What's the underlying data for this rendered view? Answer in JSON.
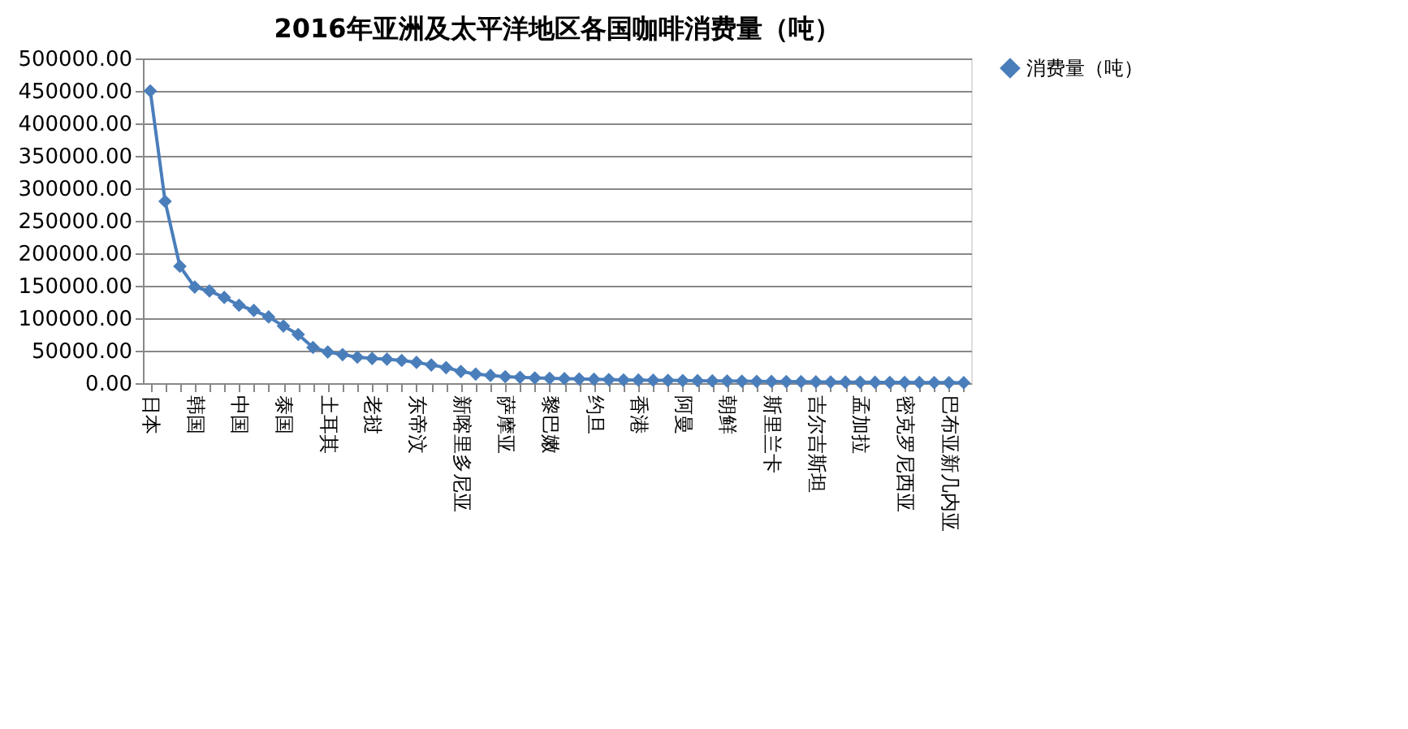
{
  "chart_data": {
    "type": "line",
    "title": "2016年亚洲及太平洋地区各国咖啡消费量（吨）",
    "categories": [
      "日本",
      null,
      null,
      "韩国",
      null,
      null,
      "中国",
      null,
      null,
      "泰国",
      null,
      null,
      "土耳其",
      null,
      null,
      "老挝",
      null,
      null,
      "东帝汶",
      null,
      null,
      "新喀里多尼亚",
      null,
      null,
      "萨摩亚",
      null,
      null,
      "黎巴嫩",
      null,
      null,
      "约旦",
      null,
      null,
      "香港",
      null,
      null,
      "阿曼",
      null,
      null,
      "朝鲜",
      null,
      null,
      "斯里兰卡",
      null,
      null,
      "吉尔吉斯坦",
      null,
      null,
      "孟加拉",
      null,
      null,
      "密克罗尼西亚",
      null,
      null,
      "巴布亚新几内亚",
      null
    ],
    "series": [
      {
        "name": "消费量（吨）",
        "color": "#4a7ebb",
        "values": [
          450000,
          280000,
          180000,
          148000,
          142000,
          132000,
          120000,
          112000,
          102000,
          88000,
          75000,
          55000,
          48000,
          44000,
          40000,
          38000,
          37000,
          35000,
          32000,
          28000,
          24000,
          18000,
          14000,
          12000,
          10000,
          9000,
          8000,
          7500,
          7000,
          6500,
          6000,
          5500,
          5000,
          4800,
          4500,
          4300,
          4000,
          3800,
          3500,
          3300,
          3000,
          2800,
          2600,
          2400,
          2200,
          2000,
          1800,
          1600,
          1500,
          1400,
          1200,
          1100,
          1000,
          900,
          800,
          700
        ]
      }
    ],
    "ylim": [
      0,
      500000
    ],
    "yticks": [
      {
        "value": 0,
        "label": "0.00"
      },
      {
        "value": 50000,
        "label": "50000.00"
      },
      {
        "value": 100000,
        "label": "100000.00"
      },
      {
        "value": 150000,
        "label": "150000.00"
      },
      {
        "value": 200000,
        "label": "200000.00"
      },
      {
        "value": 250000,
        "label": "250000.00"
      },
      {
        "value": 300000,
        "label": "300000.00"
      },
      {
        "value": 350000,
        "label": "350000.00"
      },
      {
        "value": 400000,
        "label": "400000.00"
      },
      {
        "value": 450000,
        "label": "450000.00"
      },
      {
        "value": 500000,
        "label": "500000.00"
      }
    ],
    "grid": "y",
    "legend": "right",
    "marker": "diamond",
    "line_style": "solid"
  }
}
